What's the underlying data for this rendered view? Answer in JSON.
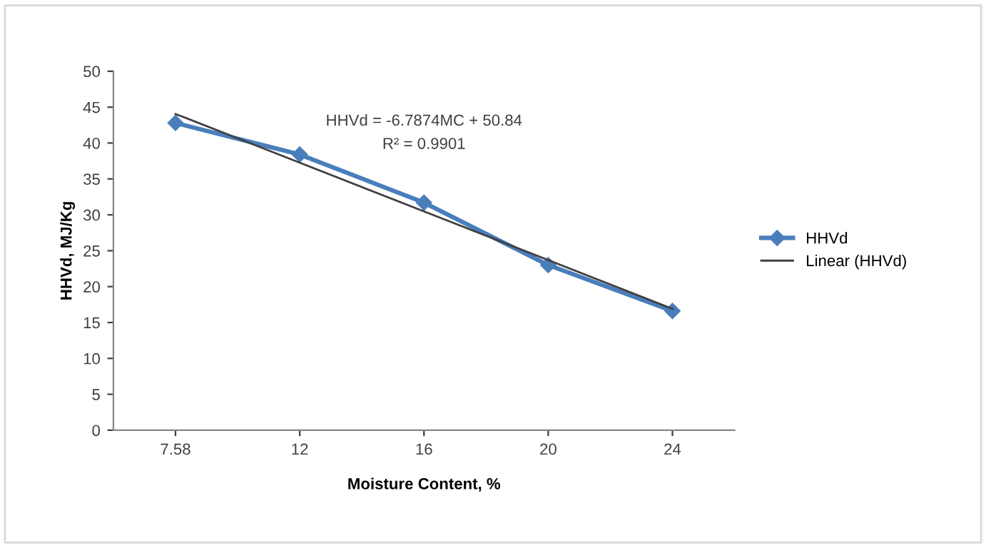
{
  "chart_data": {
    "type": "line",
    "xlabel": "Moisture Content, %",
    "ylabel": "HHVd, MJ/Kg",
    "categories": [
      "7.58",
      "12",
      "16",
      "20",
      "24"
    ],
    "series": [
      {
        "name": "HHVd",
        "color": "#4a7ebb",
        "values": [
          42.8,
          38.4,
          31.7,
          23.0,
          16.6
        ],
        "marker": "diamond"
      },
      {
        "name": "Linear (HHVd)",
        "color": "#404040",
        "values": [
          44.05,
          37.26,
          30.48,
          23.69,
          16.9
        ],
        "marker": "none"
      }
    ],
    "annotations": [
      "HHVd = -6.7874MC + 50.84",
      "R² = 0.9901"
    ],
    "ylim": [
      0,
      50
    ],
    "yticks": [
      0,
      5,
      10,
      15,
      20,
      25,
      30,
      35,
      40,
      45,
      50
    ],
    "grid": false,
    "legend": "right"
  }
}
